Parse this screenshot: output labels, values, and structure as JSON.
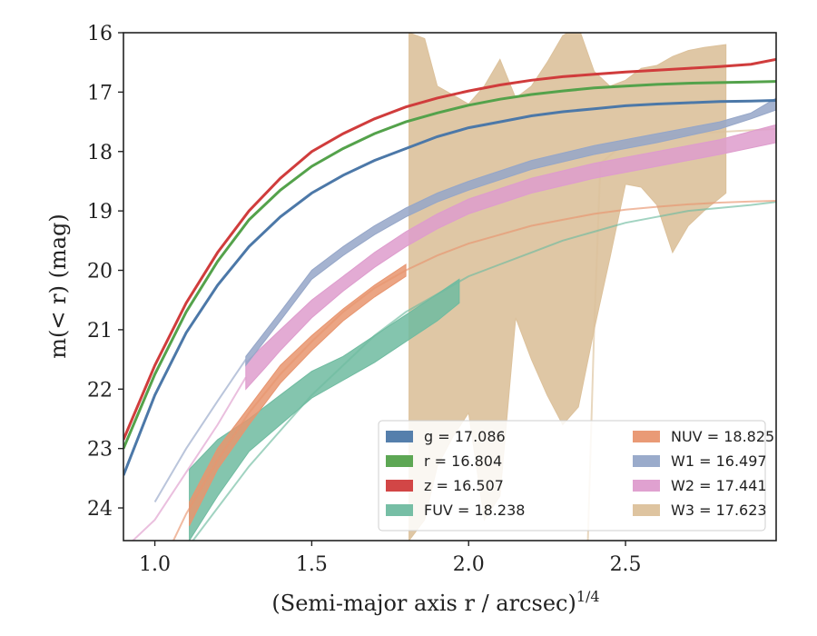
{
  "chart_data": {
    "type": "line",
    "xlabel": "(Semi-major axis r / arcsec)",
    "xlabel_sup": "1/4",
    "ylabel": "m(< r) (mag)",
    "xlim": [
      0.9,
      2.98
    ],
    "ylim": [
      24.55,
      16.0
    ],
    "y_inverted": true,
    "xticks": [
      1.0,
      1.5,
      2.0,
      2.5
    ],
    "xtick_labels": [
      "1.0",
      "1.5",
      "2.0",
      "2.5"
    ],
    "yticks": [
      16,
      17,
      18,
      19,
      20,
      21,
      22,
      23,
      24
    ],
    "ytick_labels": [
      "16",
      "17",
      "18",
      "19",
      "20",
      "21",
      "22",
      "23",
      "24"
    ],
    "grid": false,
    "legend_position": "lower-right",
    "legend": [
      {
        "band": "g",
        "label": "g = 17.086",
        "color": "#4c78a8"
      },
      {
        "band": "NUV",
        "label": "NUV = 18.825",
        "color": "#e8956f"
      },
      {
        "band": "r",
        "label": "r = 16.804",
        "color": "#54a24b"
      },
      {
        "band": "W1",
        "label": "W1 = 16.497",
        "color": "#95a6c8"
      },
      {
        "band": "z",
        "label": "z = 16.507",
        "color": "#d03c3c"
      },
      {
        "band": "W2",
        "label": "W2 = 17.441",
        "color": "#de9ccd"
      },
      {
        "band": "FUV",
        "label": "FUV = 18.238",
        "color": "#6fbba0"
      },
      {
        "band": "W3",
        "label": "W3 = 17.623",
        "color": "#dcc19b"
      }
    ],
    "series": [
      {
        "name": "W3",
        "color": "#dcc19b",
        "band_x": [
          1.81,
          1.86,
          1.9,
          1.95,
          2.0,
          2.05,
          2.1,
          2.15,
          2.2,
          2.25,
          2.3,
          2.35,
          2.4,
          2.45,
          2.5,
          2.55,
          2.6,
          2.65,
          2.7,
          2.75,
          2.82
        ],
        "band_upper": [
          16.0,
          16.1,
          16.9,
          17.05,
          17.2,
          16.9,
          16.45,
          17.1,
          16.9,
          16.5,
          16.05,
          15.9,
          16.65,
          16.9,
          16.8,
          16.6,
          16.55,
          16.4,
          16.3,
          16.25,
          16.2
        ],
        "band_lower": [
          24.55,
          24.2,
          23.3,
          22.8,
          22.4,
          24.2,
          23.8,
          20.8,
          21.5,
          22.1,
          22.6,
          22.3,
          21.0,
          19.8,
          18.55,
          18.6,
          18.9,
          19.7,
          19.25,
          19.0,
          18.7
        ],
        "line_x": [
          2.38,
          2.4,
          2.42,
          2.5,
          2.7,
          2.98
        ],
        "line_y": [
          24.55,
          21.0,
          18.2,
          17.85,
          17.7,
          17.62
        ]
      },
      {
        "name": "FUV",
        "color": "#6fbba0",
        "band_x": [
          1.11,
          1.2,
          1.3,
          1.4,
          1.5,
          1.6,
          1.7,
          1.8,
          1.9,
          1.97
        ],
        "band_upper": [
          23.35,
          22.85,
          22.5,
          22.1,
          21.7,
          21.45,
          21.1,
          20.75,
          20.4,
          20.15
        ],
        "band_lower": [
          24.55,
          23.8,
          23.05,
          22.6,
          22.15,
          21.85,
          21.55,
          21.2,
          20.85,
          20.55
        ],
        "line_x": [
          0.9,
          1.0,
          1.1,
          1.2,
          1.3,
          1.4,
          1.5,
          1.6,
          1.7,
          1.8,
          1.9,
          2.0,
          2.1,
          2.2,
          2.3,
          2.4,
          2.5,
          2.6,
          2.7,
          2.8,
          2.9,
          2.98
        ],
        "line_y": [
          25.4,
          25.05,
          24.7,
          24.0,
          23.3,
          22.7,
          22.1,
          21.6,
          21.1,
          20.7,
          20.4,
          20.1,
          19.9,
          19.7,
          19.5,
          19.35,
          19.2,
          19.1,
          19.0,
          18.95,
          18.9,
          18.85
        ]
      },
      {
        "name": "NUV",
        "color": "#e8956f",
        "band_x": [
          1.11,
          1.2,
          1.3,
          1.4,
          1.5,
          1.6,
          1.7,
          1.8
        ],
        "band_upper": [
          23.9,
          23.0,
          22.3,
          21.6,
          21.1,
          20.65,
          20.25,
          19.9
        ],
        "band_lower": [
          24.3,
          23.35,
          22.6,
          21.9,
          21.35,
          20.85,
          20.45,
          20.1
        ],
        "line_x": [
          1.0,
          1.1,
          1.2,
          1.3,
          1.4,
          1.5,
          1.6,
          1.7,
          1.8,
          1.9,
          2.0,
          2.1,
          2.2,
          2.3,
          2.4,
          2.5,
          2.6,
          2.7,
          2.8,
          2.9,
          2.98
        ],
        "line_y": [
          25.2,
          24.1,
          23.2,
          22.4,
          21.75,
          21.2,
          20.7,
          20.3,
          20.0,
          19.75,
          19.55,
          19.4,
          19.25,
          19.15,
          19.05,
          18.98,
          18.93,
          18.89,
          18.86,
          18.84,
          18.83
        ]
      },
      {
        "name": "W2",
        "color": "#de9ccd",
        "band_x": [
          1.29,
          1.35,
          1.4,
          1.5,
          1.6,
          1.7,
          1.8,
          1.9,
          2.0,
          2.2,
          2.4,
          2.6,
          2.8,
          2.98
        ],
        "band_upper": [
          21.55,
          21.25,
          21.0,
          20.5,
          20.1,
          19.7,
          19.35,
          19.05,
          18.8,
          18.45,
          18.2,
          18.0,
          17.8,
          17.55
        ],
        "band_lower": [
          22.0,
          21.65,
          21.35,
          20.8,
          20.35,
          19.95,
          19.6,
          19.3,
          19.05,
          18.7,
          18.45,
          18.25,
          18.05,
          17.85
        ],
        "line_x": [
          0.9,
          1.0,
          1.1,
          1.2,
          1.29
        ],
        "line_y": [
          24.7,
          24.2,
          23.4,
          22.6,
          21.8
        ]
      },
      {
        "name": "W1",
        "color": "#95a6c8",
        "band_x": [
          1.29,
          1.4,
          1.5,
          1.6,
          1.7,
          1.8,
          1.9,
          2.0,
          2.2,
          2.4,
          2.6,
          2.8,
          2.9,
          2.98
        ],
        "band_upper": [
          21.45,
          20.7,
          20.0,
          19.6,
          19.25,
          18.95,
          18.7,
          18.5,
          18.15,
          17.9,
          17.7,
          17.5,
          17.35,
          17.1
        ],
        "band_lower": [
          21.6,
          20.85,
          20.15,
          19.75,
          19.4,
          19.1,
          18.85,
          18.65,
          18.3,
          18.05,
          17.85,
          17.62,
          17.45,
          17.3
        ],
        "line_x": [
          1.0,
          1.1,
          1.2,
          1.29
        ],
        "line_y": [
          23.9,
          23.0,
          22.2,
          21.5
        ]
      },
      {
        "name": "g",
        "color": "#4c78a8",
        "x": [
          0.9,
          1.0,
          1.1,
          1.2,
          1.3,
          1.4,
          1.5,
          1.6,
          1.7,
          1.8,
          1.9,
          2.0,
          2.1,
          2.2,
          2.3,
          2.4,
          2.5,
          2.6,
          2.7,
          2.8,
          2.9,
          2.98
        ],
        "y": [
          23.45,
          22.1,
          21.05,
          20.25,
          19.6,
          19.1,
          18.7,
          18.4,
          18.15,
          17.95,
          17.75,
          17.6,
          17.5,
          17.4,
          17.33,
          17.28,
          17.23,
          17.2,
          17.18,
          17.16,
          17.15,
          17.14
        ]
      },
      {
        "name": "r",
        "color": "#54a24b",
        "x": [
          0.9,
          1.0,
          1.1,
          1.2,
          1.3,
          1.4,
          1.5,
          1.6,
          1.7,
          1.8,
          1.9,
          2.0,
          2.1,
          2.2,
          2.3,
          2.4,
          2.5,
          2.6,
          2.7,
          2.8,
          2.9,
          2.98
        ],
        "y": [
          23.0,
          21.75,
          20.7,
          19.85,
          19.15,
          18.65,
          18.25,
          17.95,
          17.7,
          17.5,
          17.35,
          17.22,
          17.12,
          17.04,
          16.98,
          16.93,
          16.9,
          16.87,
          16.85,
          16.84,
          16.83,
          16.82
        ]
      },
      {
        "name": "z",
        "color": "#d03c3c",
        "x": [
          0.9,
          1.0,
          1.1,
          1.2,
          1.3,
          1.4,
          1.5,
          1.6,
          1.7,
          1.8,
          1.9,
          2.0,
          2.1,
          2.2,
          2.3,
          2.4,
          2.5,
          2.6,
          2.7,
          2.8,
          2.9,
          2.98
        ],
        "y": [
          22.85,
          21.6,
          20.55,
          19.7,
          19.0,
          18.45,
          18.0,
          17.7,
          17.45,
          17.25,
          17.1,
          16.98,
          16.88,
          16.8,
          16.74,
          16.7,
          16.66,
          16.63,
          16.6,
          16.57,
          16.53,
          16.45
        ]
      }
    ]
  }
}
